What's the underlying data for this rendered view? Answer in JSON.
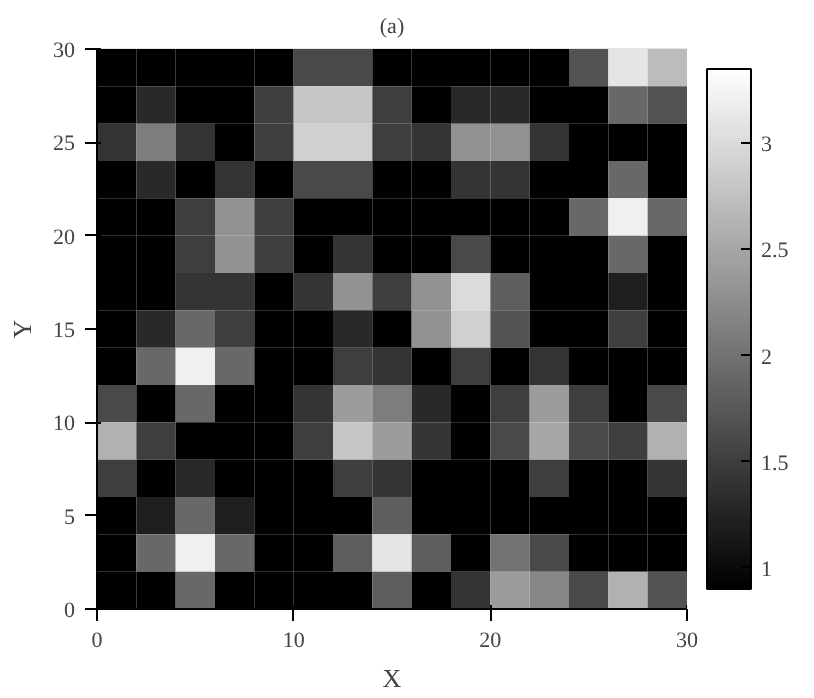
{
  "chart_data": {
    "type": "heatmap",
    "title": "(a)",
    "xlabel": "X",
    "ylabel": "Y",
    "x": [
      1,
      3,
      5,
      7,
      9,
      11,
      13,
      15,
      17,
      19,
      21,
      23,
      25,
      27,
      29
    ],
    "y": [
      29,
      27,
      25,
      23,
      21,
      19,
      17,
      15,
      13,
      11,
      9,
      7,
      5,
      3,
      1
    ],
    "xlim": [
      0,
      30
    ],
    "ylim": [
      0,
      30
    ],
    "xticks": [
      0,
      10,
      20,
      30
    ],
    "yticks": [
      0,
      5,
      10,
      15,
      20,
      25,
      30
    ],
    "clim": [
      0.9,
      3.35
    ],
    "cticks": [
      1,
      1.5,
      2,
      2.5,
      3
    ],
    "cells": [
      [
        0.9,
        0.9,
        0.9,
        0.9,
        0.9,
        1.6,
        1.6,
        0.9,
        0.9,
        0.9,
        0.9,
        0.9,
        1.7,
        3.1,
        2.7
      ],
      [
        0.9,
        1.3,
        0.9,
        0.9,
        1.5,
        2.8,
        2.8,
        1.5,
        0.9,
        1.3,
        1.3,
        0.9,
        0.9,
        1.9,
        1.7
      ],
      [
        1.4,
        2.1,
        1.4,
        0.9,
        1.5,
        2.9,
        2.9,
        1.5,
        1.4,
        2.3,
        2.3,
        1.4,
        0.9,
        0.9,
        0.9
      ],
      [
        0.9,
        1.3,
        0.9,
        1.4,
        0.9,
        1.6,
        1.6,
        0.9,
        0.9,
        1.4,
        1.4,
        0.9,
        0.9,
        1.9,
        0.9
      ],
      [
        0.9,
        0.9,
        1.5,
        2.3,
        1.5,
        0.9,
        0.9,
        0.9,
        0.9,
        0.9,
        0.9,
        0.9,
        1.9,
        3.2,
        1.9
      ],
      [
        0.9,
        0.9,
        1.5,
        2.3,
        1.5,
        0.9,
        1.4,
        0.9,
        0.9,
        1.6,
        0.9,
        0.9,
        0.9,
        1.9,
        0.9
      ],
      [
        0.9,
        0.9,
        1.4,
        1.4,
        0.9,
        1.4,
        2.3,
        1.5,
        2.3,
        3.0,
        1.8,
        0.9,
        0.9,
        1.2,
        0.9
      ],
      [
        0.9,
        1.3,
        1.9,
        1.5,
        0.9,
        0.9,
        1.3,
        0.9,
        2.3,
        2.9,
        1.7,
        0.9,
        0.9,
        1.5,
        0.9
      ],
      [
        0.9,
        1.9,
        3.2,
        1.9,
        0.9,
        0.9,
        1.5,
        1.4,
        0.9,
        1.5,
        0.9,
        1.4,
        0.9,
        0.9,
        0.9
      ],
      [
        1.6,
        0.9,
        1.9,
        0.9,
        0.9,
        1.4,
        2.4,
        2.1,
        1.3,
        0.9,
        1.5,
        2.4,
        1.5,
        0.9,
        1.6
      ],
      [
        2.6,
        1.5,
        0.9,
        0.9,
        0.9,
        1.5,
        2.8,
        2.4,
        1.4,
        0.9,
        1.6,
        2.5,
        1.6,
        1.5,
        2.6
      ],
      [
        1.5,
        0.9,
        1.3,
        0.9,
        0.9,
        0.9,
        1.5,
        1.4,
        0.9,
        0.9,
        0.9,
        1.5,
        0.9,
        0.9,
        1.4
      ],
      [
        0.9,
        1.2,
        1.9,
        1.2,
        0.9,
        0.9,
        0.9,
        1.8,
        0.9,
        0.9,
        0.9,
        0.9,
        0.9,
        0.9,
        0.9
      ],
      [
        0.9,
        1.9,
        3.2,
        1.9,
        0.9,
        0.9,
        1.8,
        3.1,
        1.8,
        0.9,
        2.0,
        1.6,
        0.9,
        0.9,
        0.9
      ],
      [
        0.9,
        0.9,
        1.9,
        0.9,
        0.9,
        0.9,
        0.9,
        1.8,
        0.9,
        1.4,
        2.4,
        2.2,
        1.6,
        2.6,
        1.7
      ]
    ]
  }
}
